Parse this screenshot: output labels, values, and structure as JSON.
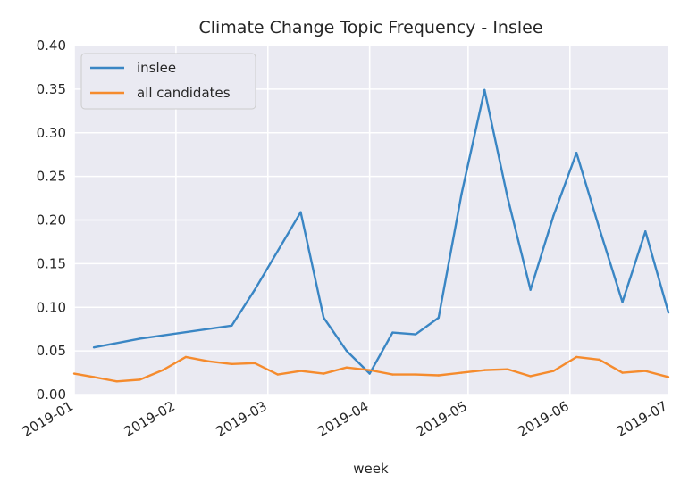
{
  "chart_data": {
    "type": "line",
    "title": "Climate Change Topic Frequency - Inslee",
    "xlabel": "week",
    "ylabel": "",
    "x_ticks": [
      "2019-01",
      "2019-02",
      "2019-03",
      "2019-04",
      "2019-05",
      "2019-06",
      "2019-07"
    ],
    "y_ticks": [
      "0.00",
      "0.05",
      "0.10",
      "0.15",
      "0.20",
      "0.25",
      "0.30",
      "0.35",
      "0.40"
    ],
    "xlim": [
      "2019-01-01",
      "2019-07-01"
    ],
    "ylim": [
      0,
      0.4
    ],
    "grid": true,
    "legend_position": "upper-left",
    "background": "#eaeaf2",
    "series": [
      {
        "name": "inslee",
        "color": "#3a86c4",
        "points": [
          [
            "2019-01-07",
            0.054
          ],
          [
            "2019-01-21",
            0.064
          ],
          [
            "2019-02-18",
            0.079
          ],
          [
            "2019-02-25",
            0.12
          ],
          [
            "2019-03-11",
            0.209
          ],
          [
            "2019-03-18",
            0.088
          ],
          [
            "2019-03-25",
            0.05
          ],
          [
            "2019-04-01",
            0.024
          ],
          [
            "2019-04-08",
            0.071
          ],
          [
            "2019-04-15",
            0.069
          ],
          [
            "2019-04-22",
            0.088
          ],
          [
            "2019-04-29",
            0.23
          ],
          [
            "2019-05-06",
            0.349
          ],
          [
            "2019-05-13",
            0.226
          ],
          [
            "2019-05-20",
            0.12
          ],
          [
            "2019-05-27",
            0.205
          ],
          [
            "2019-06-03",
            0.277
          ],
          [
            "2019-06-10",
            0.19
          ],
          [
            "2019-06-17",
            0.106
          ],
          [
            "2019-06-24",
            0.187
          ],
          [
            "2019-07-01",
            0.094
          ]
        ]
      },
      {
        "name": "all candidates",
        "color": "#f58b2d",
        "points": [
          [
            "2019-01-01",
            0.024
          ],
          [
            "2019-01-07",
            0.02
          ],
          [
            "2019-01-14",
            0.015
          ],
          [
            "2019-01-21",
            0.017
          ],
          [
            "2019-01-28",
            0.028
          ],
          [
            "2019-02-04",
            0.043
          ],
          [
            "2019-02-11",
            0.038
          ],
          [
            "2019-02-18",
            0.035
          ],
          [
            "2019-02-25",
            0.036
          ],
          [
            "2019-03-04",
            0.023
          ],
          [
            "2019-03-11",
            0.027
          ],
          [
            "2019-03-18",
            0.024
          ],
          [
            "2019-03-25",
            0.031
          ],
          [
            "2019-04-01",
            0.028
          ],
          [
            "2019-04-08",
            0.023
          ],
          [
            "2019-04-15",
            0.023
          ],
          [
            "2019-04-22",
            0.022
          ],
          [
            "2019-04-29",
            0.025
          ],
          [
            "2019-05-06",
            0.028
          ],
          [
            "2019-05-13",
            0.029
          ],
          [
            "2019-05-20",
            0.021
          ],
          [
            "2019-05-27",
            0.027
          ],
          [
            "2019-06-03",
            0.043
          ],
          [
            "2019-06-10",
            0.04
          ],
          [
            "2019-06-17",
            0.025
          ],
          [
            "2019-06-24",
            0.027
          ],
          [
            "2019-07-01",
            0.02
          ]
        ]
      }
    ]
  }
}
